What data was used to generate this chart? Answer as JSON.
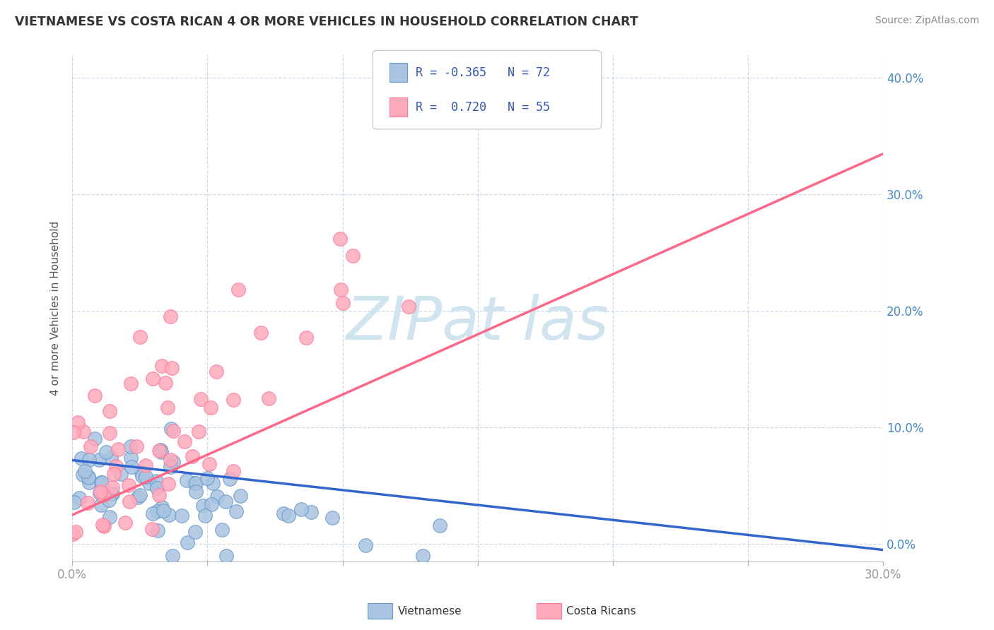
{
  "title": "VIETNAMESE VS COSTA RICAN 4 OR MORE VEHICLES IN HOUSEHOLD CORRELATION CHART",
  "source": "Source: ZipAtlas.com",
  "ylabel": "4 or more Vehicles in Household",
  "xlim": [
    0.0,
    0.3
  ],
  "ylim": [
    -0.015,
    0.42
  ],
  "xticks": [
    0.0,
    0.05,
    0.1,
    0.15,
    0.2,
    0.25,
    0.3
  ],
  "xtick_labels_show": [
    true,
    false,
    false,
    false,
    false,
    false,
    true
  ],
  "yticks": [
    0.0,
    0.1,
    0.2,
    0.3,
    0.4
  ],
  "blue_color": "#A8C4E0",
  "blue_edge_color": "#6699CC",
  "pink_color": "#FFAABB",
  "pink_edge_color": "#FF7799",
  "blue_line_color": "#3366CC",
  "pink_line_color": "#FF6688",
  "watermark_text": "ZIPat las",
  "watermark_color": "#D0E4F0",
  "background_color": "#FFFFFF",
  "title_color": "#333333",
  "axis_tick_color": "#999999",
  "yaxis_label_color": "#4488CC",
  "grid_color": "#C8D8E8",
  "r_value_blue": -0.365,
  "r_value_pink": 0.72,
  "n_blue": 72,
  "n_pink": 55,
  "blue_line_y0": 0.072,
  "blue_line_y1": -0.005,
  "pink_line_y0": 0.025,
  "pink_line_y1": 0.335,
  "blue_seed": 12,
  "pink_seed": 77
}
